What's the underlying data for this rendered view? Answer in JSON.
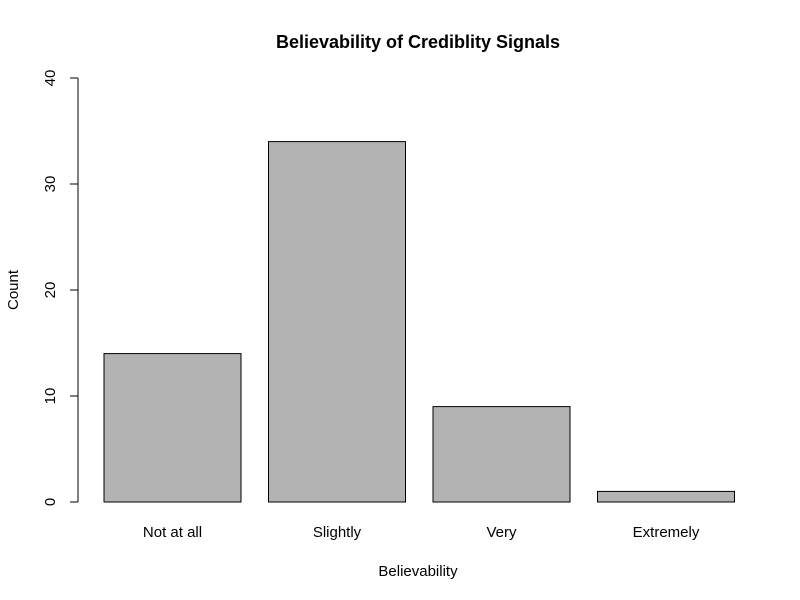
{
  "chart_data": {
    "type": "bar",
    "title": "Believability of Crediblity Signals",
    "xlabel": "Believability",
    "ylabel": "Count",
    "categories": [
      "Not at all",
      "Slightly",
      "Very",
      "Extremely"
    ],
    "values": [
      14,
      34,
      9,
      1
    ],
    "ylim": [
      0,
      40
    ],
    "yticks": [
      0,
      10,
      20,
      30,
      40
    ],
    "bar_color": "#b3b3b3",
    "grid": false,
    "legend": "none"
  }
}
